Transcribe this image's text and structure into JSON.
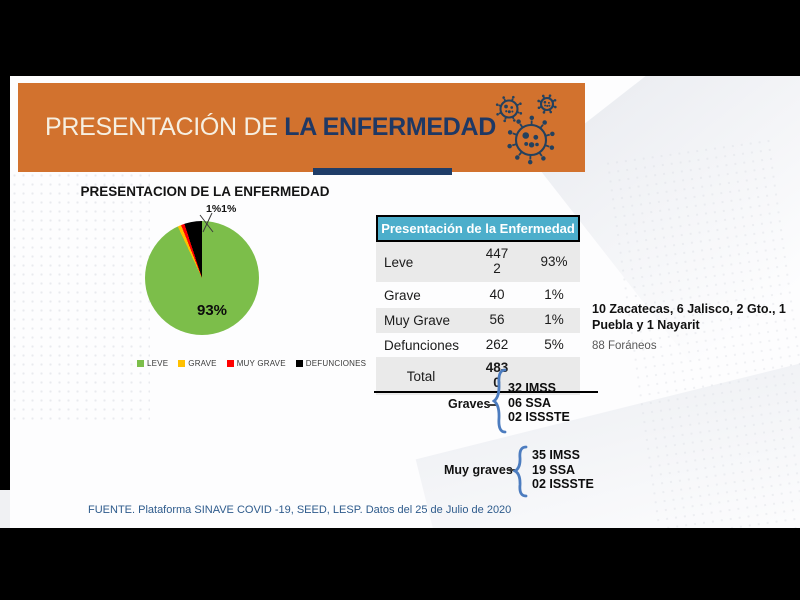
{
  "slide": {
    "banner": {
      "title_light": "PRESENTACIÓN DE ",
      "title_dark": "LA ENFERMEDAD",
      "bg_color": "#D2722E",
      "accent_color": "#1F3864",
      "icon_color": "#24415E"
    },
    "footer": "FUENTE. Plataforma SINAVE COVID -19, SEED, LESP. Datos del 25 de Julio de 2020"
  },
  "chart_data": {
    "type": "pie",
    "title": "PRESENTACION DE LA ENFERMEDAD",
    "slices": [
      {
        "label": "LEVE",
        "value": 4472,
        "pct": 93,
        "color": "#7CBE4A"
      },
      {
        "label": "GRAVE",
        "value": 40,
        "pct": 1,
        "color": "#FFC000"
      },
      {
        "label": "MUY GRAVE",
        "value": 56,
        "pct": 1,
        "color": "#FF0000"
      },
      {
        "label": "DEFUNCIONES",
        "value": 262,
        "pct": 5,
        "color": "#000000"
      }
    ],
    "visible_labels": {
      "callout": "1%1%",
      "inside": "93%"
    },
    "legend_position": "bottom",
    "start_angle": "12 o'clock, clockwise"
  },
  "table": {
    "header": "Presentación de la Enfermedad",
    "header_bg": "#4CAECB",
    "rows": [
      {
        "label": "Leve",
        "value": "447\n2",
        "percent": "93%"
      },
      {
        "label": "Grave",
        "value": "40",
        "percent": "1%"
      },
      {
        "label": "Muy Grave",
        "value": "56",
        "percent": "1%"
      },
      {
        "label": "Defunciones",
        "value": "262",
        "percent": "5%"
      },
      {
        "label": "Total",
        "value": "483\n0",
        "percent": ""
      }
    ]
  },
  "notes": {
    "states": "10 Zacatecas, 6 Jalisco, 2 Gto., 1 Puebla y 1 Nayarit",
    "foraneos": "88 Foráneos"
  },
  "graves": {
    "label": "Graves",
    "items": "32 IMSS\n06 SSA\n02 ISSSTE",
    "brace_color": "#4C7CBF"
  },
  "muy_graves": {
    "label": "Muy graves",
    "items": "35 IMSS\n19 SSA\n02 ISSSTE"
  }
}
